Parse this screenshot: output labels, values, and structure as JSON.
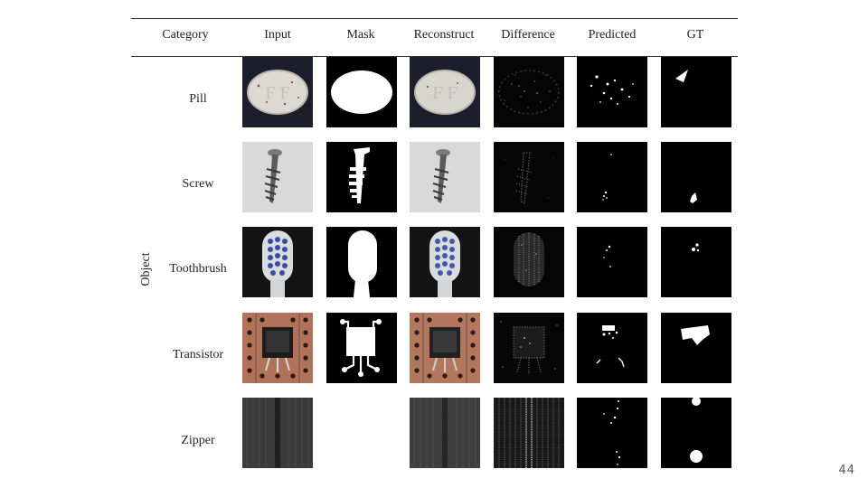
{
  "table": {
    "headers": [
      "Category",
      "Input",
      "Mask",
      "Reconstruct",
      "Difference",
      "Predicted",
      "GT"
    ],
    "group_label": "Object",
    "rows": [
      {
        "label": "Pill"
      },
      {
        "label": "Screw"
      },
      {
        "label": "Toothbrush"
      },
      {
        "label": "Transistor"
      },
      {
        "label": "Zipper"
      }
    ]
  },
  "page_number": "44"
}
